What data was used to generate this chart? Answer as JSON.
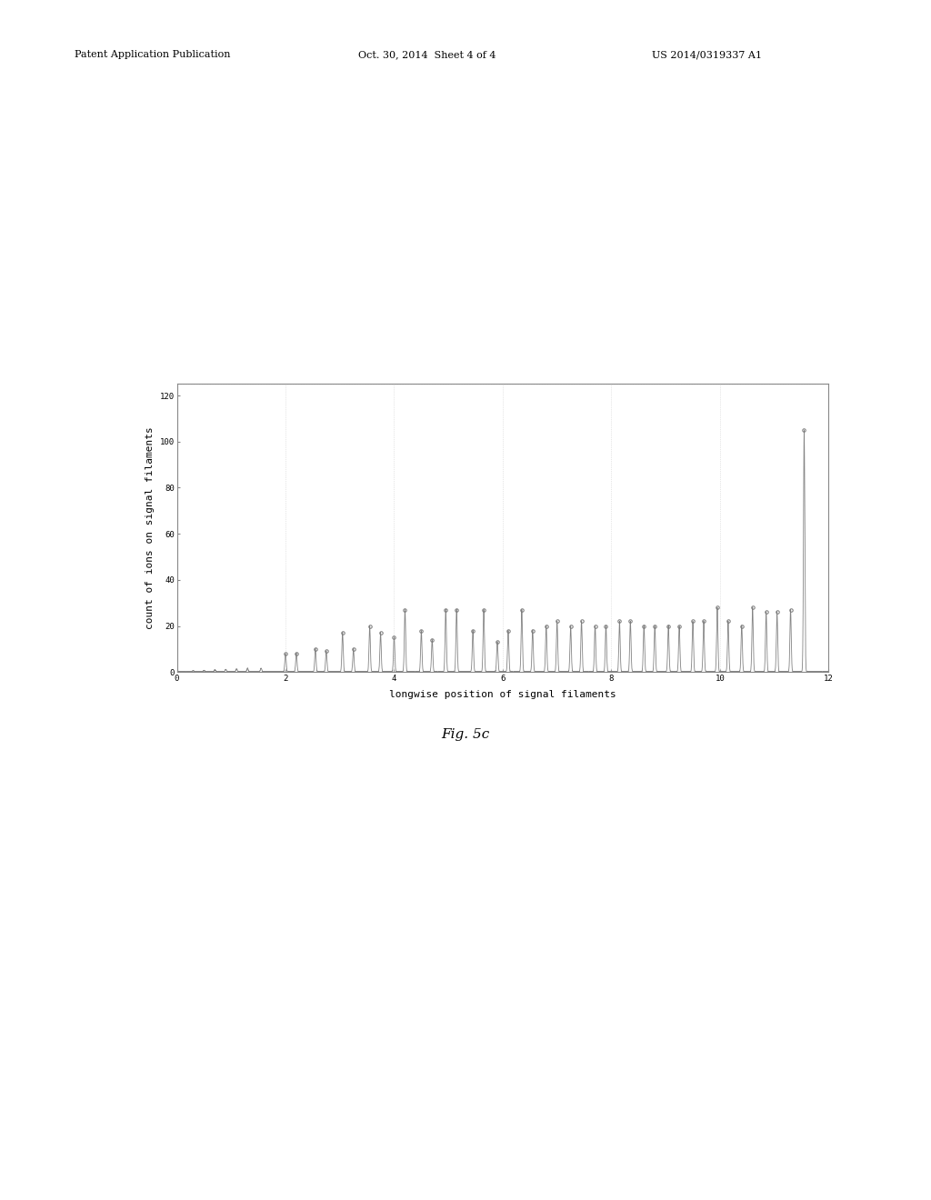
{
  "title_header": "Patent Application Publication",
  "title_date": "Oct. 30, 2014  Sheet 4 of 4",
  "title_patent": "US 2014/0319337 A1",
  "xlabel": "longwise position of signal filaments",
  "ylabel": "count of ions on signal filaments",
  "fig_label": "Fig. 5c",
  "xlim": [
    0,
    12
  ],
  "ylim": [
    0,
    125
  ],
  "yticks": [
    0,
    20,
    40,
    60,
    80,
    100,
    120
  ],
  "xticks": [
    0,
    2,
    4,
    6,
    8,
    10,
    12
  ],
  "background_color": "#ffffff",
  "line_color": "#777777",
  "marker_color": "#777777",
  "grid_color": "#aaaaaa",
  "peaks": [
    [
      0.3,
      0.5
    ],
    [
      0.5,
      0.5
    ],
    [
      0.7,
      0.8
    ],
    [
      0.9,
      1.0
    ],
    [
      1.1,
      1.2
    ],
    [
      1.3,
      1.5
    ],
    [
      1.55,
      1.5
    ],
    [
      2.0,
      8
    ],
    [
      2.2,
      8
    ],
    [
      2.55,
      10
    ],
    [
      2.75,
      9
    ],
    [
      3.05,
      17
    ],
    [
      3.25,
      10
    ],
    [
      3.55,
      20
    ],
    [
      3.75,
      17
    ],
    [
      4.0,
      15
    ],
    [
      4.2,
      27
    ],
    [
      4.5,
      18
    ],
    [
      4.7,
      14
    ],
    [
      4.95,
      27
    ],
    [
      5.15,
      27
    ],
    [
      5.45,
      18
    ],
    [
      5.65,
      27
    ],
    [
      5.9,
      13
    ],
    [
      6.1,
      18
    ],
    [
      6.35,
      27
    ],
    [
      6.55,
      18
    ],
    [
      6.8,
      20
    ],
    [
      7.0,
      22
    ],
    [
      7.25,
      20
    ],
    [
      7.45,
      22
    ],
    [
      7.7,
      20
    ],
    [
      7.9,
      20
    ],
    [
      8.15,
      22
    ],
    [
      8.35,
      22
    ],
    [
      8.6,
      20
    ],
    [
      8.8,
      20
    ],
    [
      9.05,
      20
    ],
    [
      9.25,
      20
    ],
    [
      9.5,
      22
    ],
    [
      9.7,
      22
    ],
    [
      9.95,
      28
    ],
    [
      10.15,
      22
    ],
    [
      10.4,
      20
    ],
    [
      10.6,
      28
    ],
    [
      10.85,
      26
    ],
    [
      11.05,
      26
    ],
    [
      11.3,
      27
    ],
    [
      11.55,
      105
    ]
  ]
}
